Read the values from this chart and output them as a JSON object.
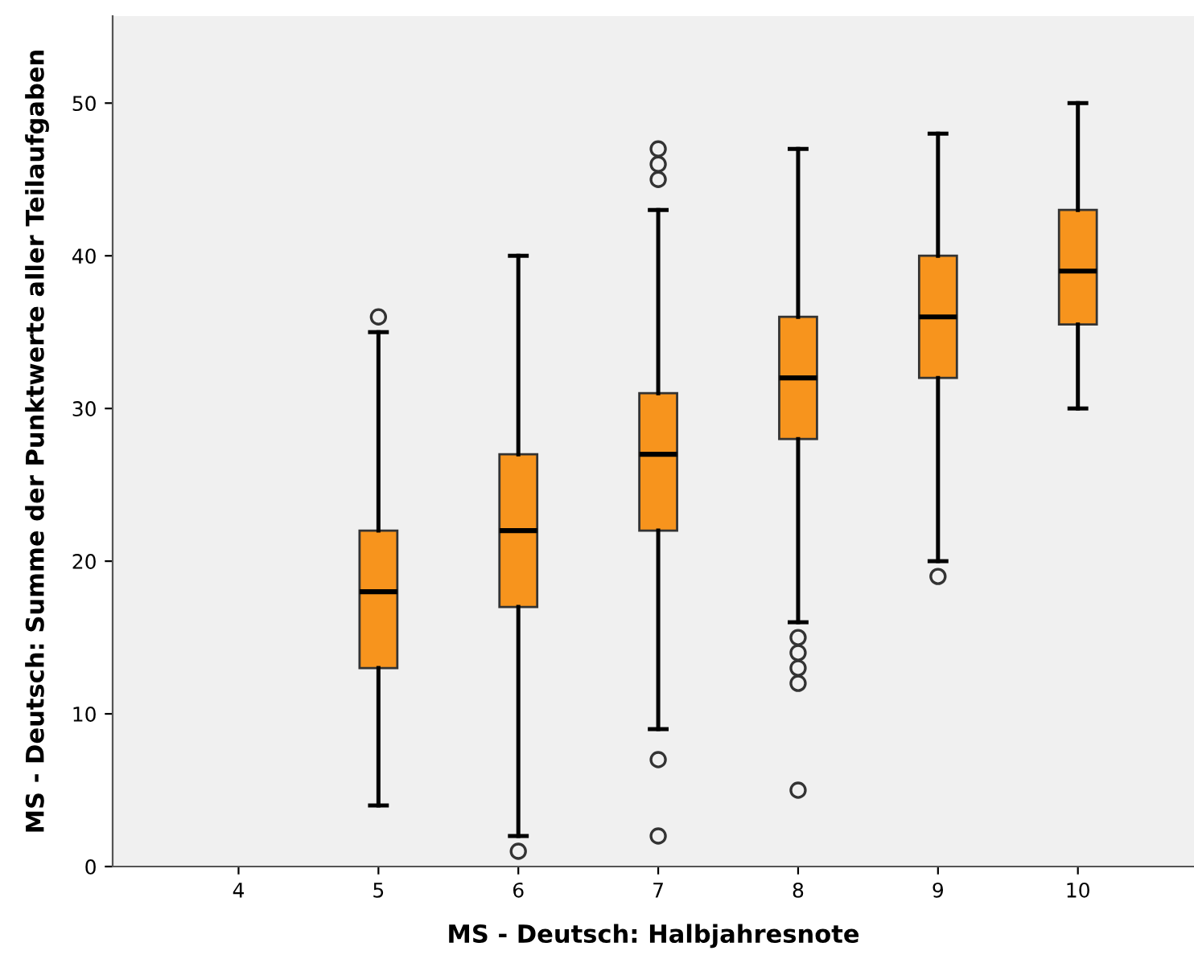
{
  "chart_data": {
    "type": "box",
    "xlabel": "MS - Deutsch: Halbjahresnote",
    "ylabel": "MS - Deutsch: Summe der Punktwerte aller Teilaufgaben",
    "categories": [
      "4",
      "5",
      "6",
      "7",
      "8",
      "9",
      "10"
    ],
    "series": [
      {
        "color": "#f7941d",
        "boxes": [
          null,
          {
            "low": 4,
            "q1": 13,
            "median": 18,
            "q3": 22,
            "high": 35,
            "outliers": [
              36
            ]
          },
          {
            "low": 2,
            "q1": 17,
            "median": 22,
            "q3": 27,
            "high": 40,
            "outliers": [
              1
            ]
          },
          {
            "low": 9,
            "q1": 22,
            "median": 27,
            "q3": 31,
            "high": 43,
            "outliers": [
              45,
              46,
              47,
              7,
              2
            ]
          },
          {
            "low": 16,
            "q1": 28,
            "median": 32,
            "q3": 36,
            "high": 47,
            "outliers": [
              15,
              14,
              13,
              12,
              5
            ]
          },
          {
            "low": 20,
            "q1": 32,
            "median": 36,
            "q3": 40,
            "high": 48,
            "outliers": [
              19
            ]
          },
          {
            "low": 30,
            "q1": 35.5,
            "median": 39,
            "q3": 43,
            "high": 50
          }
        ]
      }
    ],
    "ylim": [
      0,
      55.7
    ],
    "yticks": [
      0,
      10,
      20,
      30,
      40,
      50
    ]
  }
}
